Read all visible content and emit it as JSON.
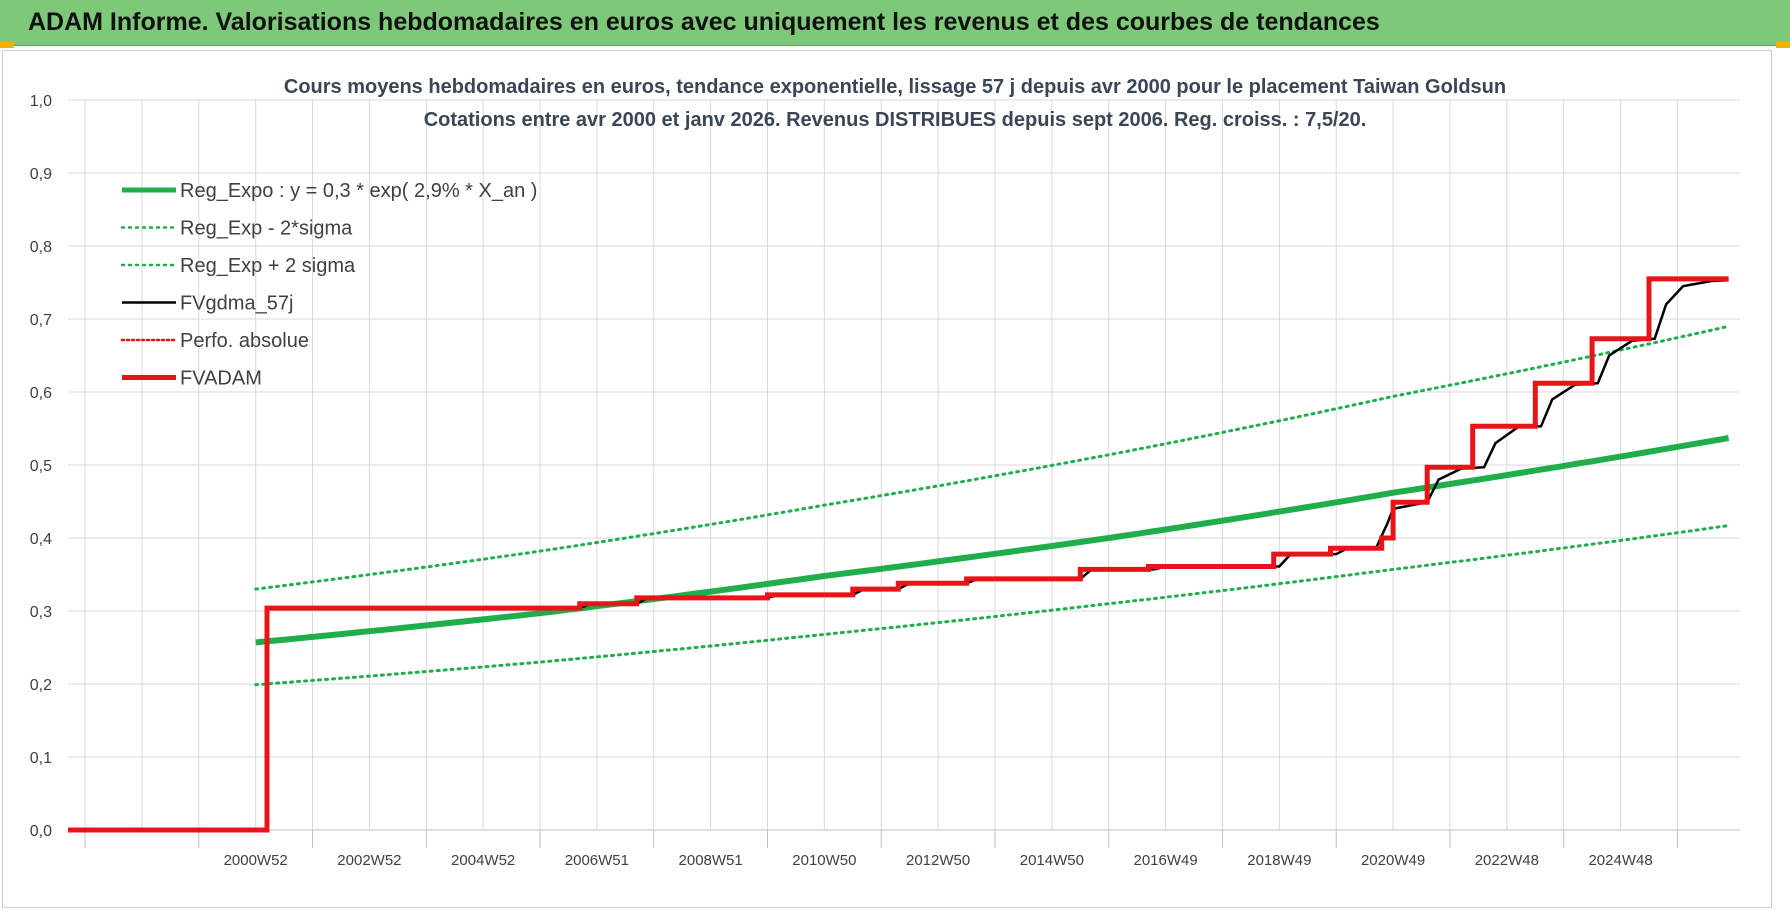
{
  "banner": {
    "title": "ADAM Informe. Valorisations hebdomadaires en euros avec uniquement les revenus et des courbes de tendances"
  },
  "colors": {
    "banner": "#7ec87a",
    "green": "#1fae4b",
    "red": "#e8141a",
    "black": "#000000",
    "grid": "#d9d9d9"
  },
  "chart_data": {
    "type": "line",
    "title": "Cours moyens hebdomadaires en euros, tendance exponentielle, lissage 57 j depuis avr 2000 pour le placement Taiwan Goldsun",
    "subtitle": "Cotations entre avr 2000 et janv 2026. Revenus DISTRIBUES depuis sept 2006. Reg. croiss. : 7,5/20.",
    "xlim": [
      1996.7,
      2026.1
    ],
    "ylim": [
      0,
      1
    ],
    "y_ticks": [
      "0,0",
      "0,1",
      "0,2",
      "0,3",
      "0,4",
      "0,5",
      "0,6",
      "0,7",
      "0,8",
      "0,9",
      "1,0"
    ],
    "x_ticks": [
      {
        "x": 2000.0,
        "label": "2000W52"
      },
      {
        "x": 2002.0,
        "label": "2002W52"
      },
      {
        "x": 2004.0,
        "label": "2004W52"
      },
      {
        "x": 2006.0,
        "label": "2006W51"
      },
      {
        "x": 2008.0,
        "label": "2008W51"
      },
      {
        "x": 2010.0,
        "label": "2010W50"
      },
      {
        "x": 2012.0,
        "label": "2012W50"
      },
      {
        "x": 2014.0,
        "label": "2014W50"
      },
      {
        "x": 2016.0,
        "label": "2016W49"
      },
      {
        "x": 2018.0,
        "label": "2018W49"
      },
      {
        "x": 2020.0,
        "label": "2020W49"
      },
      {
        "x": 2022.0,
        "label": "2022W48"
      },
      {
        "x": 2024.0,
        "label": "2024W48"
      }
    ],
    "grid": true,
    "legend_position": "top-left",
    "legend": [
      {
        "label": "Reg_Expo : y = 0,3 * exp( 2,9% *  X_an )",
        "color": "#1fae4b",
        "style": "solid-thick"
      },
      {
        "label": "Reg_Exp - 2*sigma",
        "color": "#1fae4b",
        "style": "dotted"
      },
      {
        "label": "Reg_Exp + 2 sigma",
        "color": "#1fae4b",
        "style": "dotted"
      },
      {
        "label": "FVgdma_57j",
        "color": "#000000",
        "style": "solid"
      },
      {
        "label": "Perfo. absolue",
        "color": "#e8141a",
        "style": "dotted"
      },
      {
        "label": "FVADAM",
        "color": "#e8141a",
        "style": "solid-thick"
      }
    ],
    "series": [
      {
        "name": "Reg_Expo : y = 0,3 * exp( 2,9% *  X_an )",
        "x": [
          2000.0,
          2005.0,
          2010.0,
          2015.0,
          2020.0,
          2025.9
        ],
        "y": [
          0.257,
          0.297,
          0.348,
          0.4,
          0.462,
          0.537
        ]
      },
      {
        "name": "Reg_Exp - 2*sigma",
        "x": [
          2000.0,
          2005.0,
          2010.0,
          2015.0,
          2020.0,
          2025.9
        ],
        "y": [
          0.199,
          0.23,
          0.268,
          0.31,
          0.357,
          0.417
        ]
      },
      {
        "name": "Reg_Exp + 2 sigma",
        "x": [
          2000.0,
          2005.0,
          2010.0,
          2015.0,
          2020.0,
          2025.9
        ],
        "y": [
          0.33,
          0.382,
          0.445,
          0.514,
          0.594,
          0.69
        ]
      },
      {
        "name": "FVgdma_57j",
        "x": [
          1996.7,
          2000.2,
          2000.2,
          2005.7,
          2005.9,
          2006.7,
          2006.9,
          2009.0,
          2009.2,
          2010.5,
          2010.7,
          2011.3,
          2011.5,
          2012.5,
          2012.7,
          2014.5,
          2014.7,
          2015.8,
          2016.0,
          2018.0,
          2018.2,
          2019.0,
          2019.2,
          2019.7,
          2019.9,
          2020.0,
          2020.6,
          2020.8,
          2021.2,
          2021.6,
          2021.8,
          2022.2,
          2022.6,
          2022.8,
          2023.2,
          2023.6,
          2023.8,
          2024.2,
          2024.6,
          2024.8,
          2025.1,
          2025.6,
          2025.9
        ],
        "y": [
          0,
          0,
          0.304,
          0.304,
          0.31,
          0.31,
          0.318,
          0.318,
          0.322,
          0.322,
          0.33,
          0.33,
          0.338,
          0.338,
          0.344,
          0.344,
          0.357,
          0.357,
          0.361,
          0.361,
          0.378,
          0.378,
          0.386,
          0.386,
          0.42,
          0.44,
          0.449,
          0.48,
          0.495,
          0.497,
          0.53,
          0.552,
          0.553,
          0.59,
          0.61,
          0.612,
          0.65,
          0.67,
          0.673,
          0.72,
          0.745,
          0.752,
          0.753
        ]
      },
      {
        "name": "FVADAM",
        "x": [
          1996.7,
          2000.2,
          2000.2,
          2005.7,
          2005.7,
          2006.7,
          2006.7,
          2009.0,
          2009.0,
          2010.5,
          2010.5,
          2011.3,
          2011.3,
          2012.5,
          2012.5,
          2014.5,
          2014.5,
          2015.7,
          2015.7,
          2017.9,
          2017.9,
          2018.9,
          2018.9,
          2019.8,
          2019.8,
          2020.0,
          2020.0,
          2020.6,
          2020.6,
          2021.4,
          2021.4,
          2022.5,
          2022.5,
          2023.5,
          2023.5,
          2024.5,
          2024.5,
          2025.1,
          2025.1,
          2025.9
        ],
        "y": [
          0,
          0,
          0.304,
          0.304,
          0.31,
          0.31,
          0.318,
          0.318,
          0.322,
          0.322,
          0.33,
          0.33,
          0.338,
          0.338,
          0.344,
          0.344,
          0.357,
          0.357,
          0.361,
          0.361,
          0.378,
          0.378,
          0.386,
          0.386,
          0.4,
          0.4,
          0.449,
          0.449,
          0.497,
          0.497,
          0.553,
          0.553,
          0.612,
          0.612,
          0.673,
          0.673,
          0.755,
          0.755,
          0.755,
          0.755
        ]
      }
    ]
  }
}
